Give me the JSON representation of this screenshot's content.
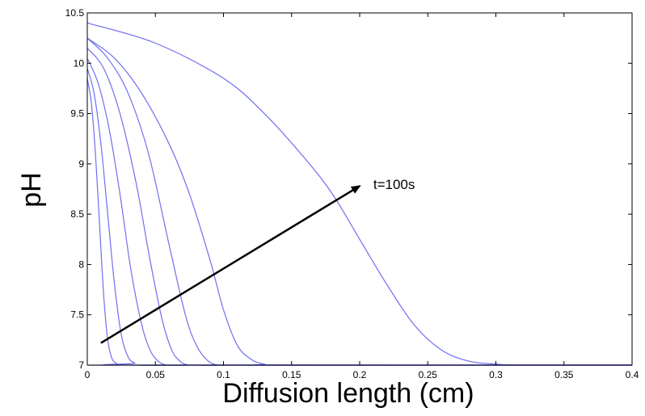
{
  "chart_data": {
    "type": "line",
    "xlabel": "Diffusion length (cm)",
    "ylabel": "pH",
    "xlim": [
      0,
      0.4
    ],
    "ylim": [
      7,
      10.5
    ],
    "xticks": [
      0,
      0.05,
      0.1,
      0.15,
      0.2,
      0.25,
      0.3,
      0.35,
      0.4
    ],
    "xtick_labels": [
      "0",
      "0.05",
      "0.1",
      "0.15",
      "0.2",
      "0.25",
      "0.3",
      "0.35",
      "0.4"
    ],
    "yticks": [
      7,
      7.5,
      8,
      8.5,
      9,
      9.5,
      10,
      10.5
    ],
    "ytick_labels": [
      "7",
      "7.5",
      "8",
      "8.5",
      "9",
      "9.5",
      "10",
      "10.5"
    ],
    "grid": false,
    "line_color": "#6f6ff0",
    "series": [
      {
        "x": [
          0,
          0.003,
          0.006,
          0.009,
          0.012,
          0.015,
          0.018,
          0.021,
          0.024,
          0.03
        ],
        "y": [
          9.85,
          9.6,
          9.1,
          8.4,
          7.7,
          7.25,
          7.07,
          7.02,
          7.0,
          7.0
        ]
      },
      {
        "x": [
          0,
          0.005,
          0.01,
          0.015,
          0.02,
          0.025,
          0.03,
          0.035,
          0.04
        ],
        "y": [
          9.95,
          9.7,
          9.2,
          8.5,
          7.8,
          7.3,
          7.08,
          7.02,
          7.0
        ]
      },
      {
        "x": [
          0,
          0.008,
          0.016,
          0.024,
          0.032,
          0.04,
          0.046,
          0.052,
          0.058,
          0.065
        ],
        "y": [
          10.05,
          9.8,
          9.35,
          8.7,
          7.95,
          7.4,
          7.15,
          7.04,
          7.0,
          7.0
        ]
      },
      {
        "x": [
          0,
          0.012,
          0.024,
          0.036,
          0.046,
          0.055,
          0.062,
          0.068,
          0.074,
          0.082
        ],
        "y": [
          10.15,
          9.95,
          9.5,
          8.8,
          8.05,
          7.45,
          7.15,
          7.04,
          7.0,
          7.0
        ]
      },
      {
        "x": [
          0,
          0.015,
          0.03,
          0.045,
          0.06,
          0.072,
          0.08,
          0.088,
          0.096,
          0.11
        ],
        "y": [
          10.25,
          10.05,
          9.7,
          9.1,
          8.2,
          7.5,
          7.2,
          7.05,
          7.0,
          7.0
        ]
      },
      {
        "x": [
          0,
          0.02,
          0.04,
          0.06,
          0.075,
          0.09,
          0.1,
          0.11,
          0.12,
          0.13,
          0.145
        ],
        "y": [
          10.25,
          10.05,
          9.7,
          9.2,
          8.7,
          8.05,
          7.55,
          7.2,
          7.06,
          7.01,
          7.0
        ]
      },
      {
        "x": [
          0,
          0.05,
          0.1,
          0.13,
          0.16,
          0.18,
          0.2,
          0.22,
          0.24,
          0.26,
          0.28,
          0.3,
          0.32,
          0.4
        ],
        "y": [
          10.4,
          10.2,
          9.85,
          9.5,
          9.05,
          8.7,
          8.25,
          7.8,
          7.4,
          7.15,
          7.04,
          7.01,
          7.0,
          7.0
        ]
      }
    ],
    "annotations": [
      {
        "text": "t=100s",
        "x": 0.21,
        "y": 8.8
      }
    ],
    "arrow": {
      "from": [
        0.01,
        7.22
      ],
      "to": [
        0.2,
        8.78
      ]
    }
  }
}
